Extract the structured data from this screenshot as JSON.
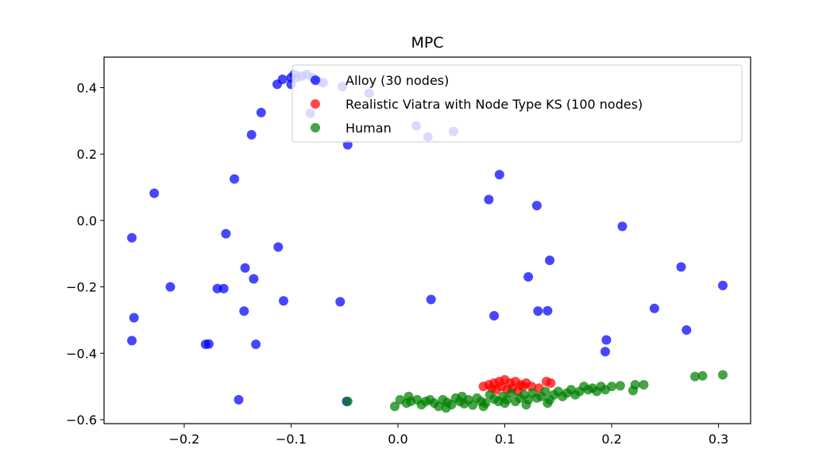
{
  "chart_data": {
    "type": "scatter",
    "title": "MPC",
    "xlabel": "",
    "ylabel": "",
    "xlim": [
      -0.275,
      0.33
    ],
    "ylim": [
      -0.612,
      0.492
    ],
    "xticks": [
      -0.2,
      -0.1,
      0.0,
      0.1,
      0.2,
      0.3
    ],
    "xtick_labels": [
      "−0.2",
      "−0.1",
      "0.0",
      "0.1",
      "0.2",
      "0.3"
    ],
    "yticks": [
      -0.6,
      -0.4,
      -0.2,
      0.0,
      0.2,
      0.4
    ],
    "ytick_labels": [
      "−0.6",
      "−0.4",
      "−0.2",
      "0.0",
      "0.2",
      "0.4"
    ],
    "grid": false,
    "legend_position": "top-right",
    "series": [
      {
        "name": "Alloy (30 nodes)",
        "color": "#0000ff",
        "points": [
          [
            -0.097,
            0.44
          ],
          [
            -0.1,
            0.43
          ],
          [
            -0.1,
            0.41
          ],
          [
            -0.095,
            0.43
          ],
          [
            -0.09,
            0.435
          ],
          [
            -0.085,
            0.44
          ],
          [
            -0.08,
            0.43
          ],
          [
            -0.075,
            0.42
          ],
          [
            -0.07,
            0.415
          ],
          [
            -0.108,
            0.425
          ],
          [
            -0.113,
            0.41
          ],
          [
            -0.052,
            0.403
          ],
          [
            -0.027,
            0.383
          ],
          [
            -0.082,
            0.323
          ],
          [
            -0.137,
            0.258
          ],
          [
            -0.047,
            0.228
          ],
          [
            0.017,
            0.285
          ],
          [
            0.028,
            0.252
          ],
          [
            0.052,
            0.268
          ],
          [
            -0.128,
            0.325
          ],
          [
            -0.228,
            0.082
          ],
          [
            -0.249,
            -0.052
          ],
          [
            -0.153,
            0.125
          ],
          [
            -0.161,
            -0.04
          ],
          [
            -0.112,
            -0.08
          ],
          [
            -0.213,
            -0.2
          ],
          [
            -0.169,
            -0.205
          ],
          [
            -0.163,
            -0.205
          ],
          [
            -0.143,
            -0.143
          ],
          [
            -0.135,
            -0.176
          ],
          [
            -0.107,
            -0.242
          ],
          [
            -0.054,
            -0.245
          ],
          [
            -0.144,
            -0.273
          ],
          [
            -0.247,
            -0.293
          ],
          [
            -0.249,
            -0.362
          ],
          [
            -0.18,
            -0.373
          ],
          [
            -0.177,
            -0.372
          ],
          [
            -0.133,
            -0.373
          ],
          [
            -0.149,
            -0.54
          ],
          [
            -0.048,
            -0.545
          ],
          [
            0.095,
            0.138
          ],
          [
            0.085,
            0.063
          ],
          [
            0.13,
            0.045
          ],
          [
            0.21,
            -0.018
          ],
          [
            0.142,
            -0.12
          ],
          [
            0.122,
            -0.17
          ],
          [
            0.031,
            -0.238
          ],
          [
            0.131,
            -0.273
          ],
          [
            0.14,
            -0.272
          ],
          [
            0.09,
            -0.287
          ],
          [
            0.265,
            -0.14
          ],
          [
            0.304,
            -0.196
          ],
          [
            0.24,
            -0.265
          ],
          [
            0.27,
            -0.33
          ],
          [
            0.195,
            -0.36
          ],
          [
            0.194,
            -0.395
          ]
        ]
      },
      {
        "name": "Realistic Viatra with Node Type KS (100 nodes)",
        "color": "#ff0000",
        "points": [
          [
            0.08,
            -0.5
          ],
          [
            0.085,
            -0.495
          ],
          [
            0.09,
            -0.49
          ],
          [
            0.095,
            -0.485
          ],
          [
            0.1,
            -0.48
          ],
          [
            0.105,
            -0.49
          ],
          [
            0.11,
            -0.485
          ],
          [
            0.115,
            -0.495
          ],
          [
            0.12,
            -0.49
          ],
          [
            0.125,
            -0.5
          ],
          [
            0.139,
            -0.485
          ],
          [
            0.143,
            -0.49
          ],
          [
            0.097,
            -0.5
          ],
          [
            0.107,
            -0.505
          ],
          [
            0.117,
            -0.5
          ],
          [
            0.092,
            -0.51
          ],
          [
            0.102,
            -0.51
          ],
          [
            0.112,
            -0.515
          ],
          [
            0.132,
            -0.505
          ],
          [
            0.088,
            -0.505
          ]
        ]
      },
      {
        "name": "Human",
        "color": "#008000",
        "points": [
          [
            -0.047,
            -0.545
          ],
          [
            -0.003,
            -0.56
          ],
          [
            0.002,
            -0.54
          ],
          [
            0.008,
            -0.55
          ],
          [
            0.012,
            -0.545
          ],
          [
            0.018,
            -0.54
          ],
          [
            0.022,
            -0.555
          ],
          [
            0.026,
            -0.545
          ],
          [
            0.03,
            -0.54
          ],
          [
            0.034,
            -0.55
          ],
          [
            0.038,
            -0.56
          ],
          [
            0.042,
            -0.54
          ],
          [
            0.046,
            -0.548
          ],
          [
            0.05,
            -0.555
          ],
          [
            0.054,
            -0.535
          ],
          [
            0.058,
            -0.545
          ],
          [
            0.062,
            -0.552
          ],
          [
            0.066,
            -0.54
          ],
          [
            0.07,
            -0.556
          ],
          [
            0.074,
            -0.535
          ],
          [
            0.078,
            -0.545
          ],
          [
            0.082,
            -0.55
          ],
          [
            0.086,
            -0.525
          ],
          [
            0.09,
            -0.538
          ],
          [
            0.094,
            -0.545
          ],
          [
            0.098,
            -0.53
          ],
          [
            0.102,
            -0.54
          ],
          [
            0.106,
            -0.52
          ],
          [
            0.11,
            -0.545
          ],
          [
            0.114,
            -0.535
          ],
          [
            0.118,
            -0.525
          ],
          [
            0.122,
            -0.54
          ],
          [
            0.126,
            -0.52
          ],
          [
            0.13,
            -0.535
          ],
          [
            0.134,
            -0.53
          ],
          [
            0.138,
            -0.515
          ],
          [
            0.142,
            -0.54
          ],
          [
            0.146,
            -0.525
          ],
          [
            0.15,
            -0.515
          ],
          [
            0.154,
            -0.53
          ],
          [
            0.158,
            -0.52
          ],
          [
            0.162,
            -0.51
          ],
          [
            0.166,
            -0.525
          ],
          [
            0.17,
            -0.515
          ],
          [
            0.174,
            -0.5
          ],
          [
            0.178,
            -0.51
          ],
          [
            0.182,
            -0.505
          ],
          [
            0.186,
            -0.515
          ],
          [
            0.19,
            -0.5
          ],
          [
            0.194,
            -0.51
          ],
          [
            0.2,
            -0.5
          ],
          [
            0.208,
            -0.498
          ],
          [
            0.22,
            -0.512
          ],
          [
            0.222,
            -0.495
          ],
          [
            0.23,
            -0.495
          ],
          [
            0.278,
            -0.47
          ],
          [
            0.285,
            -0.468
          ],
          [
            0.304,
            -0.465
          ],
          [
            0.01,
            -0.53
          ],
          [
            0.06,
            -0.53
          ],
          [
            0.1,
            -0.55
          ],
          [
            0.14,
            -0.55
          ],
          [
            0.12,
            -0.555
          ],
          [
            0.08,
            -0.56
          ],
          [
            0.045,
            -0.565
          ]
        ]
      }
    ]
  }
}
